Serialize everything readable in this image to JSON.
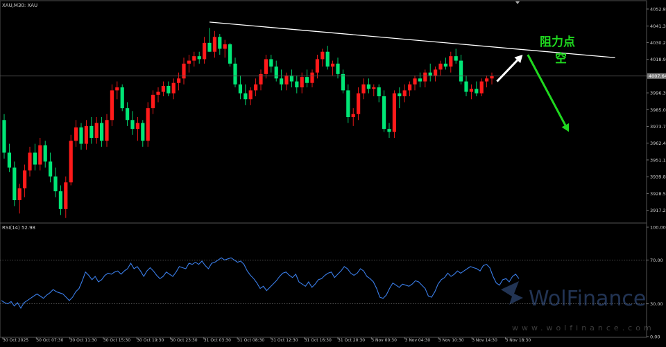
{
  "symbol_label": "XAU,M30: XAU",
  "rsi_label": "RSI(14) 52.98",
  "current_price_tag": "4007.64",
  "annotation": {
    "resistance": "阻力点",
    "action": "空"
  },
  "watermark": {
    "brand": "WolFinance",
    "url": "www.wolfinance.com"
  },
  "colors": {
    "up": "#ff1a1a",
    "down": "#00e676",
    "rsi_line": "#3a7de8",
    "trendline": "#ffffff",
    "arrow_up": "#ffffff",
    "arrow_down": "#1fd81f",
    "annotation_text": "#1fd81f"
  },
  "chart_data": [
    {
      "type": "candlestick",
      "title": "XAU,M30: XAU",
      "y_ticks": [
        "4052.80",
        "4041.30",
        "4030.20",
        "4018.90",
        "4007.60",
        "3996.30",
        "3985.00",
        "3973.70",
        "3962.40",
        "3951.10",
        "3939.80",
        "3928.50",
        "3917.20"
      ],
      "x_ticks": [
        "30 Oct 2025",
        "30 Oct 07:30",
        "30 Oct 11:30",
        "30 Oct 15:30",
        "30 Oct 19:30",
        "30 Oct 23:30",
        "31 Oct 03:30",
        "31 Oct 08:30",
        "31 Oct 12:30",
        "31 Oct 16:30",
        "31 Oct 20:30",
        "3 Nov 00:30",
        "3 Nov 04:30",
        "3 Nov 10:30",
        "3 Nov 14:30",
        "3 Nov 18:30"
      ],
      "ylim": [
        3910,
        4057
      ],
      "current_price": 4007.64,
      "candles": [
        [
          3978,
          3982,
          3952,
          3956
        ],
        [
          3956,
          3962,
          3943,
          3946
        ],
        [
          3946,
          3950,
          3920,
          3924
        ],
        [
          3924,
          3935,
          3915,
          3932
        ],
        [
          3932,
          3948,
          3926,
          3944
        ],
        [
          3944,
          3960,
          3940,
          3956
        ],
        [
          3956,
          3962,
          3944,
          3948
        ],
        [
          3948,
          3966,
          3944,
          3961
        ],
        [
          3961,
          3964,
          3946,
          3950
        ],
        [
          3950,
          3956,
          3936,
          3940
        ],
        [
          3940,
          3946,
          3926,
          3930
        ],
        [
          3930,
          3934,
          3914,
          3918
        ],
        [
          3918,
          3940,
          3912,
          3936
        ],
        [
          3936,
          3968,
          3934,
          3964
        ],
        [
          3964,
          3978,
          3960,
          3973
        ],
        [
          3973,
          3976,
          3958,
          3962
        ],
        [
          3962,
          3978,
          3958,
          3974
        ],
        [
          3974,
          3980,
          3962,
          3966
        ],
        [
          3966,
          3980,
          3962,
          3976
        ],
        [
          3976,
          3980,
          3960,
          3964
        ],
        [
          3964,
          3982,
          3960,
          3978
        ],
        [
          3978,
          4002,
          3974,
          3998
        ],
        [
          3998,
          4004,
          3992,
          4000
        ],
        [
          4000,
          4002,
          3984,
          3986
        ],
        [
          3986,
          3990,
          3974,
          3978
        ],
        [
          3978,
          3984,
          3968,
          3972
        ],
        [
          3972,
          3980,
          3964,
          3976
        ],
        [
          3976,
          3978,
          3960,
          3964
        ],
        [
          3964,
          3990,
          3960,
          3986
        ],
        [
          3986,
          3998,
          3982,
          3995
        ],
        [
          3995,
          4000,
          3990,
          3997
        ],
        [
          3997,
          4004,
          3994,
          4001
        ],
        [
          4001,
          4004,
          3994,
          3996
        ],
        [
          3996,
          4006,
          3992,
          4003
        ],
        [
          4003,
          4010,
          3998,
          4006
        ],
        [
          4006,
          4020,
          4002,
          4016
        ],
        [
          4016,
          4022,
          4010,
          4018
        ],
        [
          4018,
          4024,
          4014,
          4021
        ],
        [
          4021,
          4024,
          4016,
          4019
        ],
        [
          4019,
          4034,
          4016,
          4030
        ],
        [
          4030,
          4040,
          4024,
          4024
        ],
        [
          4024,
          4038,
          4020,
          4034
        ],
        [
          4034,
          4036,
          4022,
          4026
        ],
        [
          4026,
          4032,
          4020,
          4029
        ],
        [
          4029,
          4030,
          4014,
          4016
        ],
        [
          4016,
          4020,
          4000,
          4002
        ],
        [
          4002,
          4008,
          3992,
          3996
        ],
        [
          3996,
          4002,
          3988,
          3992
        ],
        [
          3992,
          4000,
          3988,
          3998
        ],
        [
          3998,
          4006,
          3994,
          4002
        ],
        [
          4002,
          4012,
          3998,
          4009
        ],
        [
          4009,
          4022,
          4006,
          4019
        ],
        [
          4019,
          4022,
          4010,
          4014
        ],
        [
          4014,
          4018,
          4004,
          4006
        ],
        [
          4006,
          4012,
          3998,
          4002
        ],
        [
          4002,
          4010,
          3998,
          4008
        ],
        [
          4008,
          4012,
          4000,
          4004
        ],
        [
          4004,
          4008,
          3996,
          4000
        ],
        [
          4000,
          4010,
          3996,
          4007
        ],
        [
          4007,
          4012,
          4000,
          4003
        ],
        [
          4003,
          4012,
          4000,
          4010
        ],
        [
          4010,
          4022,
          4006,
          4019
        ],
        [
          4019,
          4026,
          4014,
          4024
        ],
        [
          4024,
          4028,
          4012,
          4014
        ],
        [
          4014,
          4018,
          4008,
          4016
        ],
        [
          4016,
          4020,
          4006,
          4009
        ],
        [
          4009,
          4012,
          3996,
          3998
        ],
        [
          3998,
          4002,
          3976,
          3980
        ],
        [
          3980,
          3986,
          3974,
          3982
        ],
        [
          3982,
          4000,
          3978,
          3996
        ],
        [
          3996,
          4006,
          3992,
          4002
        ],
        [
          4002,
          4006,
          3996,
          3999
        ],
        [
          3999,
          4002,
          3994,
          4000
        ],
        [
          4000,
          4002,
          3990,
          3994
        ],
        [
          3994,
          3998,
          3970,
          3972
        ],
        [
          3972,
          3976,
          3966,
          3970
        ],
        [
          3970,
          3998,
          3966,
          3996
        ],
        [
          3996,
          4000,
          3986,
          3994
        ],
        [
          3994,
          4002,
          3990,
          3998
        ],
        [
          3998,
          4004,
          3994,
          4002
        ],
        [
          4002,
          4008,
          3998,
          4006
        ],
        [
          4006,
          4010,
          4000,
          4004
        ],
        [
          4004,
          4012,
          4000,
          4010
        ],
        [
          4010,
          4016,
          4004,
          4008
        ],
        [
          4008,
          4014,
          4004,
          4012
        ],
        [
          4012,
          4018,
          4008,
          4016
        ],
        [
          4016,
          4020,
          4012,
          4014
        ],
        [
          4014,
          4024,
          4010,
          4021
        ],
        [
          4021,
          4026,
          4016,
          4018
        ],
        [
          4018,
          4022,
          4002,
          4004
        ],
        [
          4004,
          4008,
          3994,
          3997
        ],
        [
          3997,
          4002,
          3992,
          3999
        ],
        [
          3999,
          4004,
          3994,
          3996
        ],
        [
          3996,
          4006,
          3994,
          4004
        ],
        [
          4004,
          4008,
          4000,
          4006
        ],
        [
          4006,
          4010,
          4002,
          4007.6
        ]
      ],
      "trendline": {
        "from": {
          "bar": 40,
          "price": 4044
        },
        "to": {
          "bar": 119,
          "price": 4020
        }
      },
      "arrows": [
        {
          "label": "up",
          "from": {
            "bar": 96,
            "price": 4004
          },
          "to": {
            "bar": 101,
            "price": 4022
          }
        },
        {
          "label": "down",
          "from": {
            "bar": 102,
            "price": 4022
          },
          "to": {
            "bar": 110,
            "price": 3970
          }
        }
      ]
    },
    {
      "type": "line",
      "title": "RSI(14) 52.98",
      "ylim": [
        0,
        100
      ],
      "y_ticks": [
        "100.00",
        "70.00",
        "30.00",
        "0.00"
      ],
      "levels": [
        70,
        30
      ],
      "values": [
        33,
        31,
        30,
        32,
        28,
        31,
        26,
        31,
        33,
        35,
        37,
        39,
        37,
        35,
        38,
        40,
        43,
        41,
        40,
        39,
        36,
        33,
        36,
        41,
        44,
        51,
        59,
        56,
        52,
        55,
        50,
        52,
        56,
        58,
        57,
        59,
        60,
        57,
        60,
        62,
        67,
        62,
        64,
        60,
        55,
        60,
        63,
        60,
        56,
        53,
        55,
        59,
        57,
        55,
        59,
        64,
        63,
        62,
        67,
        66,
        68,
        66,
        69,
        65,
        62,
        67,
        68,
        70,
        72,
        70,
        71,
        72,
        70,
        68,
        69,
        66,
        60,
        56,
        53,
        49,
        44,
        46,
        42,
        45,
        48,
        51,
        55,
        58,
        59,
        56,
        54,
        57,
        50,
        48,
        46,
        50,
        45,
        48,
        52,
        53,
        56,
        58,
        59,
        54,
        57,
        60,
        64,
        62,
        58,
        56,
        58,
        62,
        60,
        55,
        53,
        50,
        44,
        36,
        35,
        38,
        44,
        49,
        47,
        45,
        48,
        47,
        46,
        48,
        51,
        50,
        47,
        44,
        37,
        36,
        41,
        48,
        52,
        54,
        58,
        55,
        57,
        60,
        58,
        60,
        62,
        64,
        63,
        62,
        60,
        65,
        66,
        63,
        55,
        49,
        47,
        52,
        53,
        50,
        55,
        57,
        52.98
      ]
    }
  ]
}
